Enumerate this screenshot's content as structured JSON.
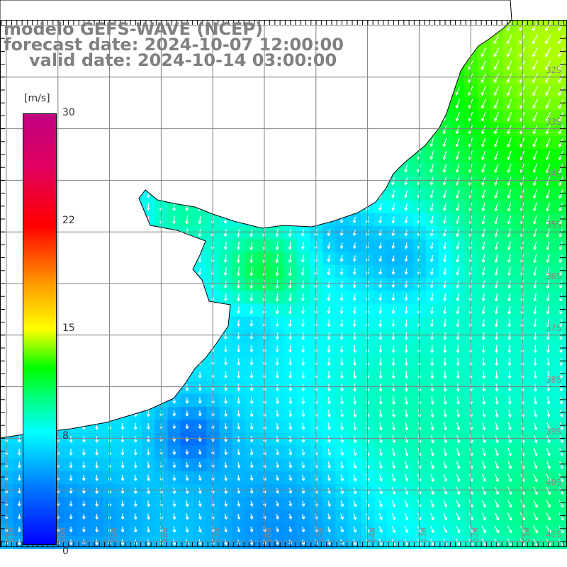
{
  "title": {
    "line1": "modelo GEFS-WAVE (NCEP)",
    "line2": "forecast date: 2024-10-07 12:00:00",
    "line3": "valid date: 2024-10-14 03:00:00"
  },
  "colorbar": {
    "unit": "[m/s]",
    "labels": [
      "30",
      "22",
      "15",
      "8",
      "0"
    ],
    "stop_values": [
      30,
      22,
      15,
      8,
      0
    ]
  },
  "lat_labels": [
    "32S",
    "33S",
    "34S",
    "35S",
    "36S",
    "37S",
    "38S",
    "39S",
    "40S",
    "41S"
  ],
  "lon_labels": [
    "61W",
    "60W",
    "59W",
    "58W",
    "57W",
    "56W",
    "55W",
    "54W",
    "53W",
    "52W",
    "51W"
  ],
  "colors": {
    "land": "#ffffff",
    "coast": "#000000",
    "grid": "#808080",
    "arrow": "#ffffff"
  }
}
